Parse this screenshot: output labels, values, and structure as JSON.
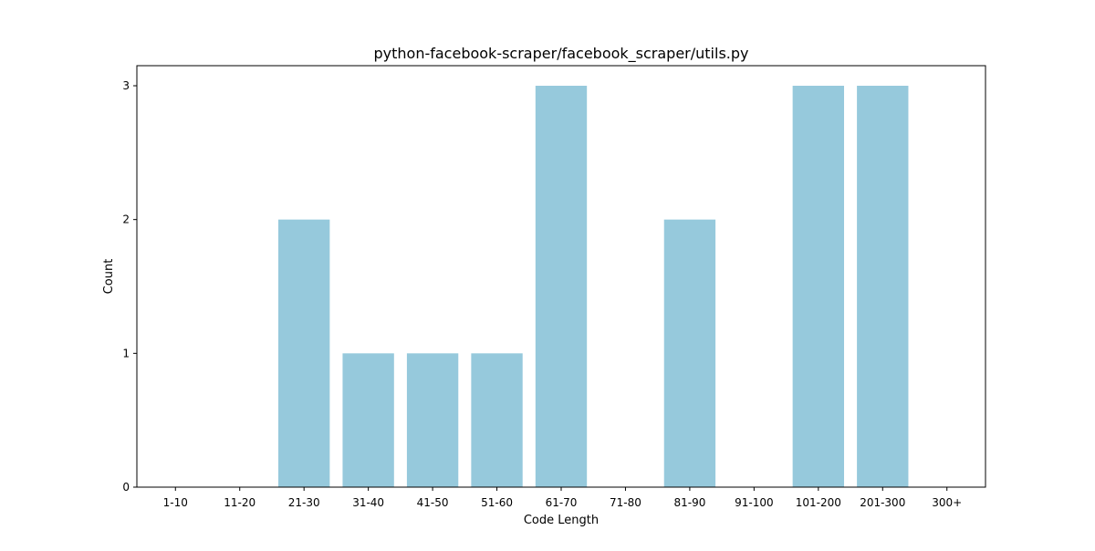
{
  "chart_data": {
    "type": "bar",
    "title": "python-facebook-scraper/facebook_scraper/utils.py",
    "xlabel": "Code Length",
    "ylabel": "Count",
    "categories": [
      "1-10",
      "11-20",
      "21-30",
      "31-40",
      "41-50",
      "51-60",
      "61-70",
      "71-80",
      "81-90",
      "91-100",
      "101-200",
      "201-300",
      "300+"
    ],
    "values": [
      0,
      0,
      2,
      1,
      1,
      1,
      3,
      0,
      2,
      0,
      3,
      3,
      0
    ],
    "ylim": [
      0,
      3.15
    ],
    "yticks": [
      0,
      1,
      2,
      3
    ],
    "grid": false,
    "bar_color": "#96c9dc"
  }
}
